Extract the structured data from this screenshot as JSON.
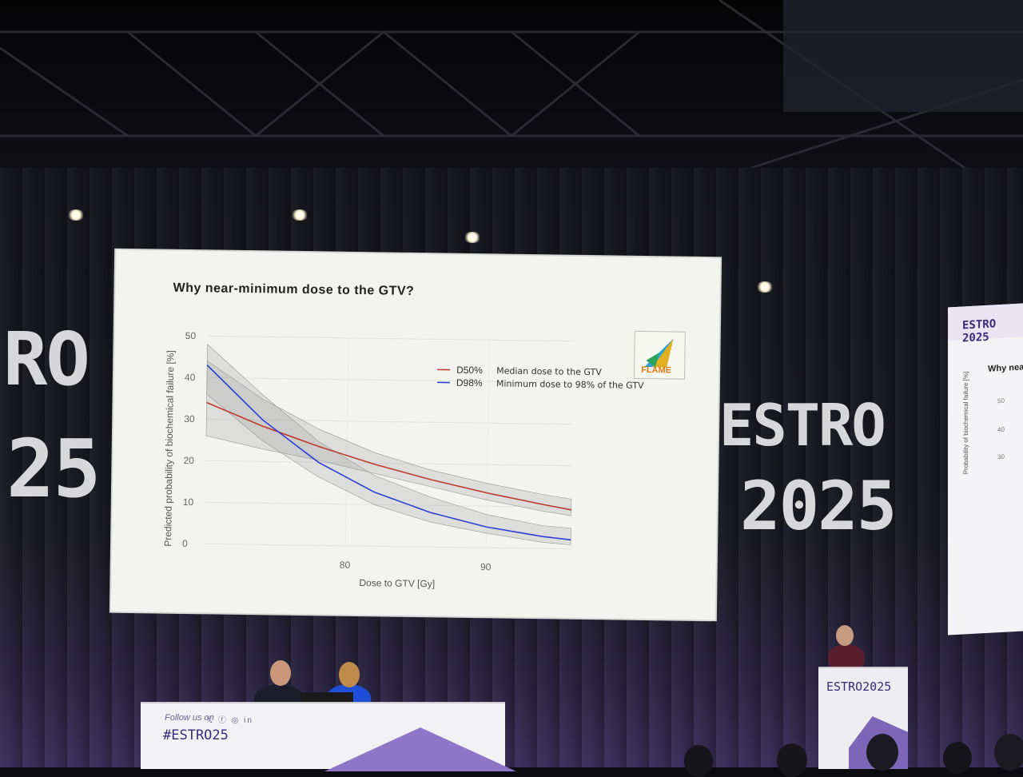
{
  "slide": {
    "title": "Why near-minimum dose to the GTV?",
    "logo_text": "FLAME"
  },
  "chart_data": {
    "type": "line",
    "xlabel": "Dose to GTV [Gy]",
    "ylabel": "Predicted probability of biochemical failure [%]",
    "xlim": [
      70,
      96
    ],
    "ylim": [
      0,
      50
    ],
    "xticks": [
      "80",
      "90"
    ],
    "yticks": [
      "0",
      "10",
      "20",
      "30",
      "40",
      "50"
    ],
    "legend": [
      {
        "code": "D50%",
        "desc": "Median dose to the GTV",
        "color": "#c0392b"
      },
      {
        "code": "D98%",
        "desc": "Minimum dose to 98% of the GTV",
        "color": "#2c3ed6"
      }
    ],
    "series": [
      {
        "name": "D50%",
        "color": "#c0392b",
        "x": [
          70,
          74,
          78,
          82,
          86,
          90,
          94,
          96
        ],
        "y": [
          34,
          28.5,
          23.8,
          19.7,
          16.2,
          13.2,
          10.6,
          9.4
        ],
        "ci_low": [
          26,
          23,
          20.5,
          17.5,
          14.5,
          11.5,
          9.0,
          8.0
        ],
        "ci_high": [
          44,
          35,
          28,
          22.5,
          18.5,
          15.5,
          13.0,
          12.0
        ]
      },
      {
        "name": "D98%",
        "color": "#2c3ed6",
        "x": [
          70,
          74,
          78,
          82,
          86,
          90,
          94,
          96
        ],
        "y": [
          43,
          30,
          20,
          13,
          8.3,
          5.0,
          2.9,
          2.2
        ],
        "ci_low": [
          36,
          25,
          16.5,
          10.0,
          6.0,
          3.5,
          1.5,
          1.0
        ],
        "ci_high": [
          48,
          36,
          25,
          17,
          12,
          8,
          5.5,
          5.0
        ]
      }
    ]
  },
  "background": {
    "estro_left": "RO",
    "year_left": "25",
    "estro_center": "ESTRO",
    "year_center": "2025"
  },
  "side_screen": {
    "logo": "ESTRO 2025",
    "title": "Why near",
    "ylabel": "Probability of biochemical failure [%]",
    "yticks": [
      "50",
      "40",
      "30"
    ]
  },
  "desk": {
    "follow": "Follow us on",
    "icons": "𝕏 ⓕ ◎ in",
    "hashtag": "#ESTRO25"
  },
  "podium": {
    "logo": "ESTRO2025"
  }
}
